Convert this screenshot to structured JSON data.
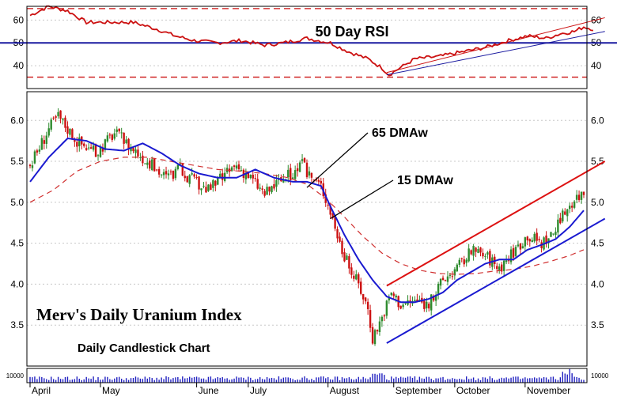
{
  "chart_data": {
    "type": "candlestick",
    "title": "Merv's Daily Uranium Index",
    "subtitle": "Daily Candlestick Chart",
    "colors": {
      "rsi_line": "#cc1111",
      "rsi_guide_dashed": "#cc1111",
      "rsi_midline": "#1a1aa0",
      "up_candle": "#2e8b2e",
      "down_candle": "#cc1111",
      "ma15": "#1a1ad0",
      "ma65": "#d03030",
      "channel_upper": "#dd1111",
      "channel_lower": "#1a1ad0",
      "volume": "#2020c0"
    },
    "x_labels": [
      "April",
      "May",
      "June",
      "July",
      "August",
      "September",
      "October",
      "November"
    ],
    "price_axis": {
      "ticks": [
        3.5,
        4.0,
        4.5,
        5.0,
        5.5,
        6.0
      ],
      "tick_labels": [
        "3.5",
        "4.0",
        "4.5",
        "5.0",
        "5.5",
        "6.0"
      ],
      "ylim": [
        3.0,
        6.35
      ]
    },
    "rsi_panel": {
      "label": "50 Day RSI",
      "ticks": [
        40,
        50,
        60
      ],
      "tick_labels": [
        "40",
        "50",
        "60"
      ],
      "ylim": [
        30,
        66
      ],
      "dashed_levels": [
        65,
        35
      ],
      "midline": 50,
      "rsi_points": [
        [
          0,
          62
        ],
        [
          8,
          66
        ],
        [
          16,
          64
        ],
        [
          24,
          59
        ],
        [
          34,
          59
        ],
        [
          44,
          59
        ],
        [
          54,
          56
        ],
        [
          62,
          53
        ],
        [
          70,
          51
        ],
        [
          80,
          50
        ],
        [
          90,
          51
        ],
        [
          100,
          49
        ],
        [
          108,
          50
        ],
        [
          118,
          52
        ],
        [
          128,
          50
        ],
        [
          136,
          46
        ],
        [
          144,
          43
        ],
        [
          150,
          39
        ],
        [
          153,
          36
        ],
        [
          156,
          38
        ],
        [
          164,
          43
        ],
        [
          174,
          44
        ],
        [
          184,
          46
        ],
        [
          194,
          48
        ],
        [
          204,
          51
        ],
        [
          212,
          53
        ],
        [
          220,
          52
        ],
        [
          226,
          54
        ],
        [
          232,
          55
        ],
        [
          236,
          57
        ],
        [
          240,
          56
        ]
      ],
      "upper_trend": [
        [
          152,
          37
        ],
        [
          245,
          61
        ]
      ],
      "lower_trend": [
        [
          152,
          36
        ],
        [
          245,
          55
        ]
      ]
    },
    "volume_axis": {
      "tick_label": "10000"
    },
    "annotations": [
      {
        "text": "65 DMAw",
        "arrow_target": [
          118,
          5.18
        ]
      },
      {
        "text": "15 DMAw",
        "arrow_target": [
          128,
          4.8
        ]
      }
    ],
    "ma15": [
      [
        0,
        5.25
      ],
      [
        8,
        5.55
      ],
      [
        16,
        5.78
      ],
      [
        24,
        5.75
      ],
      [
        32,
        5.65
      ],
      [
        40,
        5.63
      ],
      [
        48,
        5.72
      ],
      [
        56,
        5.6
      ],
      [
        64,
        5.45
      ],
      [
        72,
        5.35
      ],
      [
        80,
        5.3
      ],
      [
        88,
        5.3
      ],
      [
        96,
        5.4
      ],
      [
        104,
        5.3
      ],
      [
        112,
        5.25
      ],
      [
        118,
        5.25
      ],
      [
        124,
        5.2
      ],
      [
        128,
        4.95
      ],
      [
        134,
        4.6
      ],
      [
        140,
        4.3
      ],
      [
        146,
        4.05
      ],
      [
        152,
        3.85
      ],
      [
        158,
        3.78
      ],
      [
        164,
        3.78
      ],
      [
        170,
        3.82
      ],
      [
        176,
        3.9
      ],
      [
        182,
        4.05
      ],
      [
        188,
        4.15
      ],
      [
        194,
        4.25
      ],
      [
        200,
        4.3
      ],
      [
        206,
        4.3
      ],
      [
        212,
        4.42
      ],
      [
        218,
        4.48
      ],
      [
        224,
        4.55
      ],
      [
        230,
        4.7
      ],
      [
        236,
        4.9
      ]
    ],
    "ma65": [
      [
        0,
        5.0
      ],
      [
        10,
        5.15
      ],
      [
        20,
        5.38
      ],
      [
        30,
        5.5
      ],
      [
        40,
        5.55
      ],
      [
        50,
        5.55
      ],
      [
        60,
        5.5
      ],
      [
        70,
        5.45
      ],
      [
        80,
        5.4
      ],
      [
        90,
        5.38
      ],
      [
        100,
        5.35
      ],
      [
        110,
        5.3
      ],
      [
        118,
        5.22
      ],
      [
        126,
        5.05
      ],
      [
        134,
        4.82
      ],
      [
        142,
        4.58
      ],
      [
        150,
        4.38
      ],
      [
        158,
        4.25
      ],
      [
        166,
        4.17
      ],
      [
        174,
        4.13
      ],
      [
        182,
        4.12
      ],
      [
        190,
        4.13
      ],
      [
        198,
        4.16
      ],
      [
        206,
        4.18
      ],
      [
        214,
        4.22
      ],
      [
        222,
        4.28
      ],
      [
        230,
        4.35
      ],
      [
        236,
        4.42
      ]
    ],
    "channel_upper": [
      [
        152,
        3.98
      ],
      [
        245,
        5.5
      ]
    ],
    "channel_lower": [
      [
        152,
        3.28
      ],
      [
        245,
        4.8
      ]
    ],
    "key_points": [
      [
        0,
        5.45
      ],
      [
        8,
        5.9
      ],
      [
        12,
        6.05
      ],
      [
        20,
        5.75
      ],
      [
        28,
        5.6
      ],
      [
        36,
        5.85
      ],
      [
        44,
        5.65
      ],
      [
        52,
        5.45
      ],
      [
        58,
        5.3
      ],
      [
        64,
        5.4
      ],
      [
        70,
        5.25
      ],
      [
        76,
        5.15
      ],
      [
        82,
        5.3
      ],
      [
        88,
        5.45
      ],
      [
        94,
        5.3
      ],
      [
        100,
        5.1
      ],
      [
        106,
        5.25
      ],
      [
        112,
        5.35
      ],
      [
        116,
        5.45
      ],
      [
        120,
        5.3
      ],
      [
        124,
        5.2
      ],
      [
        128,
        4.9
      ],
      [
        132,
        4.5
      ],
      [
        136,
        4.2
      ],
      [
        140,
        4.0
      ],
      [
        144,
        3.7
      ],
      [
        146,
        3.35
      ],
      [
        150,
        3.6
      ],
      [
        154,
        3.9
      ],
      [
        158,
        3.75
      ],
      [
        164,
        3.8
      ],
      [
        170,
        3.75
      ],
      [
        176,
        4.05
      ],
      [
        182,
        4.2
      ],
      [
        188,
        4.4
      ],
      [
        194,
        4.35
      ],
      [
        200,
        4.2
      ],
      [
        206,
        4.4
      ],
      [
        212,
        4.6
      ],
      [
        218,
        4.5
      ],
      [
        224,
        4.65
      ],
      [
        228,
        4.9
      ],
      [
        232,
        5.05
      ],
      [
        236,
        5.12
      ]
    ],
    "n_bars": 237
  }
}
